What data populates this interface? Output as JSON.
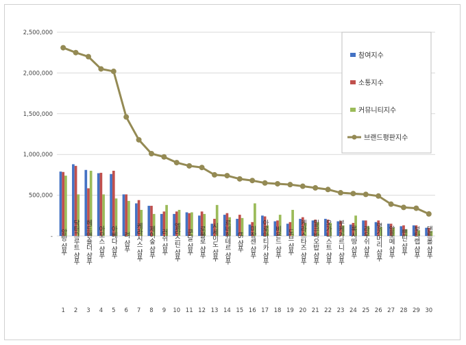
{
  "chart_data": {
    "type": "bar",
    "categories": [
      "앙방 샴푸",
      "닥터그루트 샴푸",
      "헤드앤숄더 샴푸",
      "아모스 샴푸",
      "아베다 샴푸",
      "려 샴푸",
      "케라시스 샴푸",
      "제이숲 샴푸",
      "러쉬 샴푸",
      "엘라스틴 샴푸",
      "쿤달 샴푸",
      "로블로 샴푸",
      "시세이도 샴푸",
      "르네휘테르 샴푸",
      "tS 샴푸",
      "미쟝센 샴푸",
      "아로마티카 샴푸",
      "비욘드 샴푸",
      "도브 샴푸",
      "케라스타즈 샴푸",
      "밀크바오밥 샴푸",
      "오가니스트 샴푸",
      "부케가르니 샴푸",
      "록시땅 샴푸",
      "라우쉬 샴푸",
      "댕기머리 샴푸",
      "앙포메 샴푸",
      "팬틴 샴푸",
      "보타랩 샴푸",
      "댄트롤 샴푸"
    ],
    "ranks": [
      "1",
      "2",
      "3",
      "4",
      "5",
      "6",
      "7",
      "8",
      "9",
      "10",
      "11",
      "12",
      "13",
      "14",
      "15",
      "16",
      "17",
      "18",
      "19",
      "20",
      "21",
      "22",
      "23",
      "24",
      "25",
      "26",
      "27",
      "28",
      "29",
      "30"
    ],
    "series": [
      {
        "name": "참여지수",
        "kind": "bar",
        "color": "#4472c4",
        "values": [
          790000,
          880000,
          810000,
          770000,
          760000,
          510000,
          400000,
          370000,
          270000,
          270000,
          290000,
          250000,
          150000,
          260000,
          210000,
          140000,
          250000,
          180000,
          150000,
          210000,
          190000,
          210000,
          180000,
          140000,
          190000,
          170000,
          150000,
          120000,
          130000,
          100000
        ]
      },
      {
        "name": "소통지수",
        "kind": "bar",
        "color": "#c0504d",
        "values": [
          785000,
          860000,
          585000,
          775000,
          800000,
          510000,
          440000,
          370000,
          300000,
          300000,
          280000,
          300000,
          210000,
          280000,
          260000,
          170000,
          240000,
          190000,
          170000,
          230000,
          200000,
          200000,
          180000,
          160000,
          190000,
          190000,
          150000,
          130000,
          130000,
          100000
        ]
      },
      {
        "name": "커뮤니티지수",
        "kind": "bar",
        "color": "#9bbb59",
        "values": [
          740000,
          510000,
          800000,
          510000,
          460000,
          430000,
          320000,
          270000,
          380000,
          320000,
          290000,
          270000,
          380000,
          230000,
          220000,
          400000,
          130000,
          260000,
          320000,
          160000,
          170000,
          160000,
          130000,
          250000,
          120000,
          110000,
          100000,
          80000,
          70000,
          60000
        ]
      },
      {
        "name": "브랜드평판지수",
        "kind": "line",
        "color": "#948a54",
        "values": [
          2310000,
          2250000,
          2200000,
          2050000,
          2020000,
          1460000,
          1180000,
          1010000,
          970000,
          900000,
          860000,
          840000,
          750000,
          740000,
          700000,
          680000,
          650000,
          640000,
          630000,
          610000,
          590000,
          570000,
          530000,
          520000,
          510000,
          490000,
          390000,
          350000,
          340000,
          270000
        ]
      }
    ],
    "ylim": [
      0,
      2500000
    ],
    "yticks": [
      "-",
      "500,000",
      "1,000,000",
      "1,500,000",
      "2,000,000",
      "2,500,000"
    ],
    "legend_position": "right",
    "grid": true
  }
}
